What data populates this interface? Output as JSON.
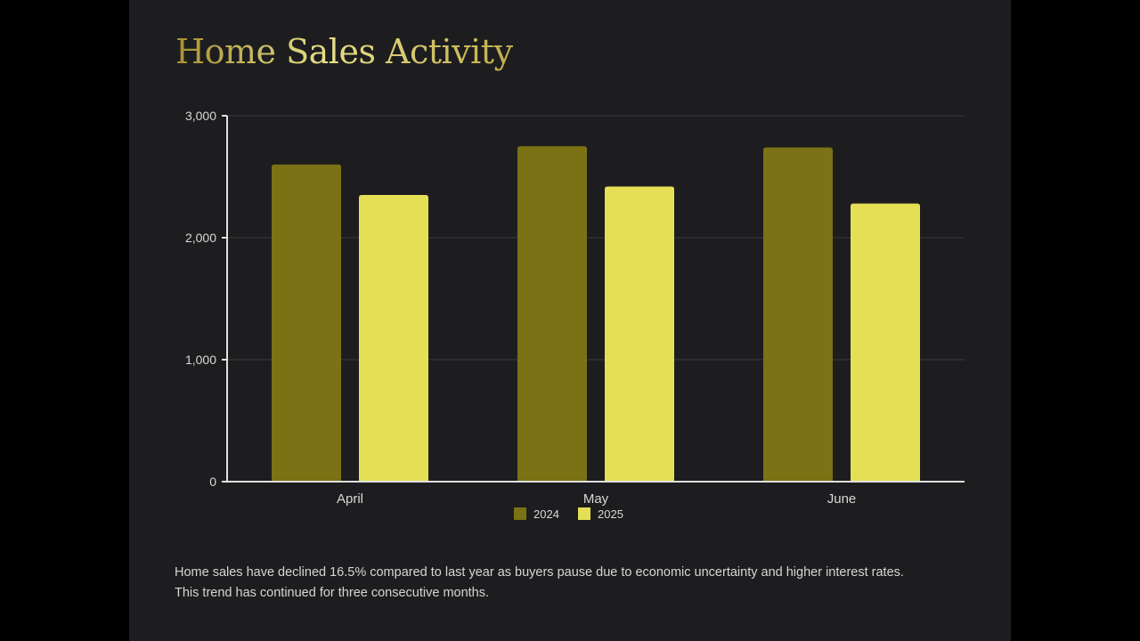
{
  "title": "Home Sales Activity",
  "caption": [
    "Home sales have declined 16.5% compared to last year as buyers pause due to economic uncertainty and higher interest rates.",
    "This trend has continued for three consecutive months."
  ],
  "chart_data": {
    "type": "bar",
    "title": "Home Sales Activity",
    "categories": [
      "April",
      "May",
      "June"
    ],
    "series": [
      {
        "name": "2024",
        "color": "#7a7214",
        "values": [
          2600,
          2750,
          2740
        ]
      },
      {
        "name": "2025",
        "color": "#e5df56",
        "values": [
          2350,
          2420,
          2280
        ]
      }
    ],
    "ylim": [
      0,
      3000
    ],
    "yticks": [
      0,
      1000,
      2000,
      3000
    ],
    "ytick_labels": [
      "0",
      "1,000",
      "2,000",
      "3,000"
    ],
    "grid": true,
    "legend": "bottom-center"
  }
}
